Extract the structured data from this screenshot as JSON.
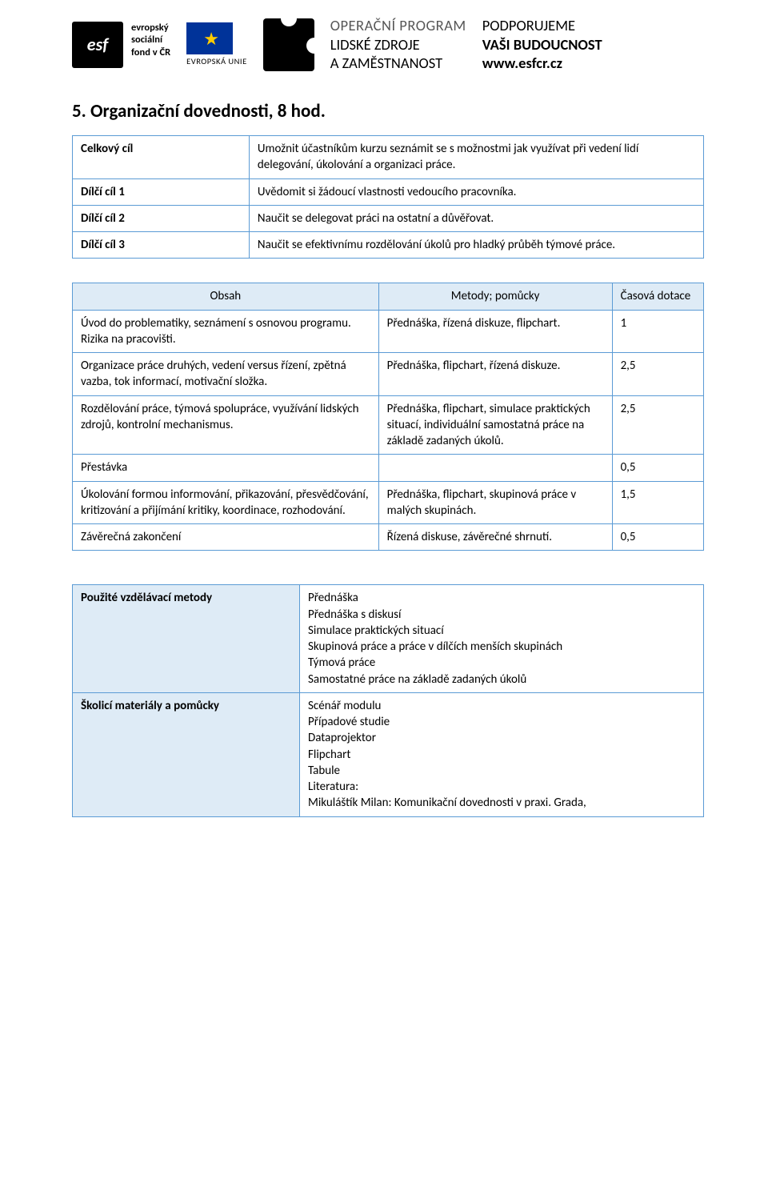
{
  "header": {
    "esf_label1": "evropský",
    "esf_label2": "sociální",
    "esf_label3": "fond v ČR",
    "eu_label": "EVROPSKÁ UNIE",
    "op_line1": "OPERAČNÍ PROGRAM",
    "op_line2": "LIDSKÉ ZDROJE",
    "op_line3": "A ZAMĚSTNANOST",
    "support_line1": "PODPORUJEME",
    "support_line2": "VAŠI BUDOUCNOST",
    "support_line3": "www.esfcr.cz"
  },
  "section_title": "5. Organizační dovednosti, 8 hod.",
  "goals": {
    "rows": [
      {
        "label": "Celkový cíl",
        "text": "Umožnit účastníkům kurzu seznámit se s možnostmi jak využívat při vedení lidí delegování, úkolování a organizaci práce."
      },
      {
        "label": "Dílčí cíl 1",
        "text": "Uvědomit si žádoucí vlastnosti vedoucího pracovníka."
      },
      {
        "label": "Dílčí cíl 2",
        "text": "Naučit se delegovat práci na ostatní a důvěřovat."
      },
      {
        "label": "Dílčí cíl 3",
        "text": "Naučit se efektivnímu rozdělování úkolů pro hladký průběh týmové práce."
      }
    ]
  },
  "content_table": {
    "headers": {
      "c1": "Obsah",
      "c2": "Metody; pomůcky",
      "c3": "Časová dotace"
    },
    "rows": [
      {
        "c1": "Úvod do problematiky, seznámení s osnovou programu. Rizika na pracovišti.",
        "c2": "Přednáška, řízená diskuze, flipchart.",
        "c3": "1"
      },
      {
        "c1": "Organizace práce druhých, vedení versus řízení, zpětná vazba, tok informací, motivační složka.",
        "c2": "Přednáška, flipchart, řízená diskuze.",
        "c3": "2,5"
      },
      {
        "c1": "Rozdělování práce, týmová spolupráce, využívání lidských zdrojů, kontrolní mechanismus.",
        "c2": "Přednáška, flipchart, simulace praktických situací, individuální samostatná práce na základě zadaných úkolů.",
        "c3": "2,5"
      },
      {
        "c1": "Přestávka",
        "c2": "",
        "c3": "0,5"
      },
      {
        "c1": "Úkolování formou informování, přikazování, přesvědčování, kritizování a přijímání kritiky, koordinace, rozhodování.",
        "c2": "Přednáška, flipchart, skupinová práce v malých skupinách.",
        "c3": "1,5"
      },
      {
        "c1": "Závěrečná zakončení",
        "c2": "Řízená diskuse, závěrečné shrnutí.",
        "c3": "0,5"
      }
    ]
  },
  "methods_table": {
    "rows": [
      {
        "label": "Použité vzdělávací metody",
        "lines": [
          "Přednáška",
          "Přednáška s diskusí",
          "Simulace praktických situací",
          "Skupinová práce a práce v dílčích menších skupinách",
          "Týmová práce",
          "Samostatné práce na základě zadaných úkolů"
        ]
      },
      {
        "label": "Školicí materiály a pomůcky",
        "lines": [
          "Scénář modulu",
          "Případové studie",
          "Dataprojektor",
          "Flipchart",
          "Tabule",
          "Literatura:",
          "Mikuláštík Milan: Komunikační dovednosti v praxi. Grada,"
        ]
      }
    ]
  },
  "colors": {
    "border": "#5b9bd5",
    "header_bg": "#deebf6",
    "text": "#000000",
    "eu_blue": "#003399",
    "eu_gold": "#ffcc00"
  }
}
